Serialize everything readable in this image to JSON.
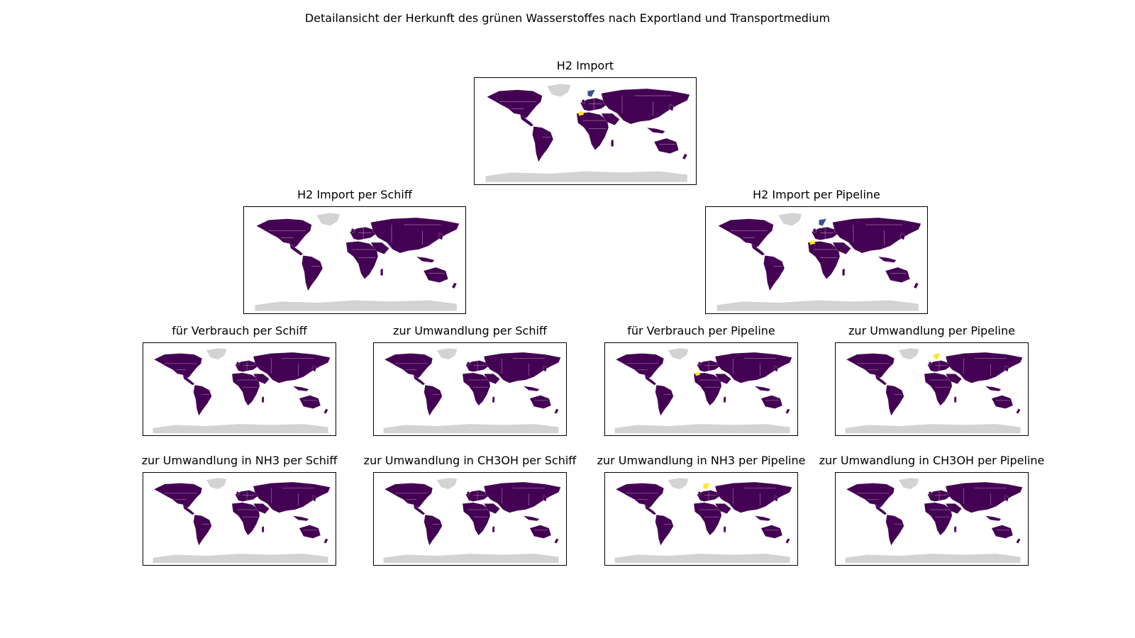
{
  "figure": {
    "title": "Detailansicht der Herkunft des grünen Wasserstoffes nach Exportland und Transportmedium"
  },
  "colors": {
    "land_value": "#440154",
    "no_data": "#d3d3d3",
    "highlight_high": "#fde725",
    "highlight_mid": "#3b528b",
    "border": "#ffffff",
    "frame": "#000000"
  },
  "panels": [
    {
      "id": "p0",
      "title": "H2 Import",
      "highlights": [
        {
          "region": "morocco",
          "color": "#fde725"
        },
        {
          "region": "norway",
          "color": "#3b528b"
        }
      ]
    },
    {
      "id": "p1",
      "title": "H2 Import per Schiff",
      "highlights": []
    },
    {
      "id": "p2",
      "title": "H2 Import per Pipeline",
      "highlights": [
        {
          "region": "morocco",
          "color": "#fde725"
        },
        {
          "region": "norway",
          "color": "#3b528b"
        }
      ]
    },
    {
      "id": "p3",
      "title": "für Verbrauch per Schiff",
      "highlights": []
    },
    {
      "id": "p4",
      "title": "zur Umwandlung per Schiff",
      "highlights": []
    },
    {
      "id": "p5",
      "title": "für Verbrauch per Pipeline",
      "highlights": [
        {
          "region": "morocco",
          "color": "#fde725"
        }
      ]
    },
    {
      "id": "p6",
      "title": "zur Umwandlung per Pipeline",
      "highlights": [
        {
          "region": "norway",
          "color": "#fde725"
        }
      ]
    },
    {
      "id": "p7",
      "title": "zur Umwandlung in NH3 per Schiff",
      "highlights": []
    },
    {
      "id": "p8",
      "title": "zur Umwandlung in CH3OH per Schiff",
      "highlights": []
    },
    {
      "id": "p9",
      "title": "zur Umwandlung in NH3 per Pipeline",
      "highlights": [
        {
          "region": "norway",
          "color": "#fde725"
        }
      ]
    },
    {
      "id": "p10",
      "title": "zur Umwandlung in CH3OH per Pipeline",
      "highlights": []
    }
  ]
}
